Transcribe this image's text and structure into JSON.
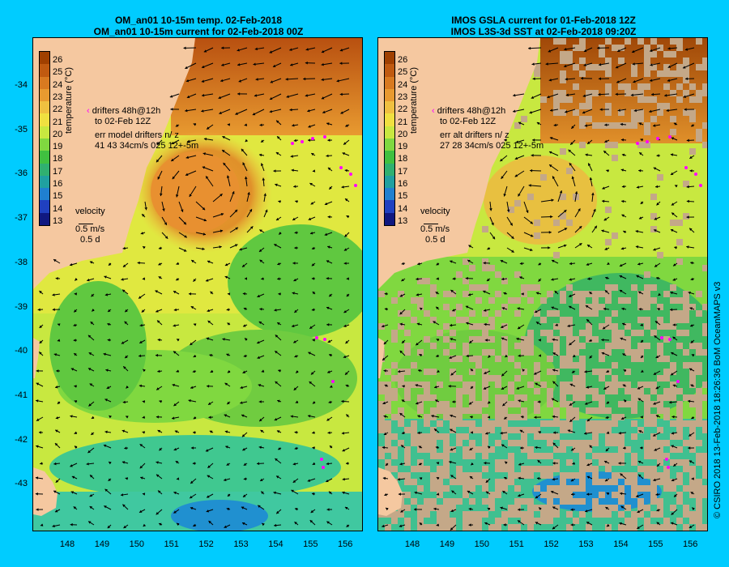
{
  "left_panel": {
    "title_line1": "OM_an01 10-15m temp. 02-Feb-2018",
    "title_line2": "OM_an01 10-15m current for 02-Feb-2018 00Z",
    "legend_drifters_1": "drifters 48h@12h",
    "legend_drifters_2": "to 02-Feb 12Z",
    "legend_err_1": "err model drifters n/ z",
    "legend_err_2": "41 43 34cm/s 025 12+-5m",
    "velocity_label": "velocity",
    "velocity_scale": "0.5 m/s",
    "velocity_time": "0.5 d"
  },
  "right_panel": {
    "title_line1": "IMOS GSLA current for 01-Feb-2018 12Z",
    "title_line2": "IMOS L3S-3d SST at 02-Feb-2018 09:20Z",
    "legend_drifters_1": "drifters 48h@12h",
    "legend_drifters_2": "to 02-Feb 12Z",
    "legend_err_1": "err alt drifters n/ z",
    "legend_err_2": "27 28 34cm/s 025 12+-5m",
    "velocity_label": "velocity",
    "velocity_scale": "0.5 m/s",
    "velocity_time": "0.5 d"
  },
  "colorbar": {
    "label": "temperature (°C)",
    "ticks": [
      "26",
      "25",
      "24",
      "23",
      "22",
      "21",
      "20",
      "19",
      "18",
      "17",
      "16",
      "15",
      "14",
      "13"
    ],
    "colors": [
      "#a04000",
      "#c05a10",
      "#d87a20",
      "#e89a30",
      "#f0c040",
      "#f0e040",
      "#c8e840",
      "#80d840",
      "#40c040",
      "#30b070",
      "#20a0a0",
      "#2080d0",
      "#2040c0",
      "#101880"
    ]
  },
  "latitudes": [
    "-34",
    "-35",
    "-36",
    "-37",
    "-38",
    "-39",
    "-40",
    "-41",
    "-42",
    "-43"
  ],
  "longitudes": [
    "148",
    "149",
    "150",
    "151",
    "152",
    "153",
    "154",
    "155",
    "156"
  ],
  "credit": "© CSIRO 2018   13-Feb-2018 18:26:36 BoM OceanMAPS v3",
  "colors": {
    "background": "#00ccff",
    "land": "#f5c8a0",
    "no_data": "#c4a888",
    "drifter": "#ff00ff"
  }
}
